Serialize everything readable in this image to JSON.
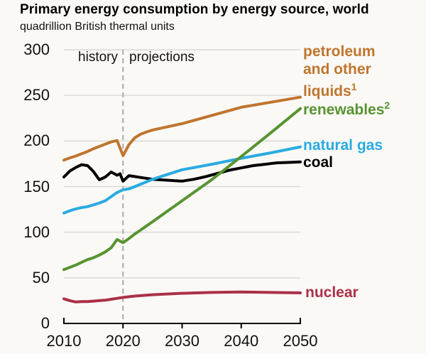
{
  "header": {
    "title": "Primary energy consumption by energy source, world",
    "subtitle": "quadrillion British thermal units"
  },
  "annotations": {
    "history": "history",
    "projections": "projections"
  },
  "series_labels": {
    "petroleum_line1": "petroleum",
    "petroleum_line2": "and other",
    "petroleum_line3": "liquids",
    "petroleum_sup": "1",
    "renewables": "renewables",
    "renewables_sup": "2",
    "natural_gas": "natural gas",
    "coal": "coal",
    "nuclear": "nuclear"
  },
  "colors": {
    "petroleum": "#bf752e",
    "renewables": "#569431",
    "natural_gas": "#29abe2",
    "coal": "#000000",
    "nuclear": "#ab3048",
    "gridline": "#d9d9d9",
    "divider_dash": "#aaaaaa",
    "axis": "#000000"
  },
  "chart_data": {
    "type": "line",
    "title": "Primary energy consumption by energy source, world",
    "ylabel": "quadrillion British thermal units",
    "xlim": [
      2010,
      2050
    ],
    "ylim": [
      0,
      300
    ],
    "x_ticks": [
      2010,
      2020,
      2030,
      2040,
      2050
    ],
    "y_ticks": [
      0,
      50,
      100,
      150,
      200,
      250,
      300
    ],
    "grid": "horizontal",
    "history_end": 2020,
    "legend_position": "right-edge-labels",
    "series": [
      {
        "id": "coal",
        "name": "coal",
        "color": "#000000",
        "points": [
          [
            2010,
            160.5
          ],
          [
            2011,
            167
          ],
          [
            2012,
            171
          ],
          [
            2013,
            174
          ],
          [
            2014,
            173
          ],
          [
            2015,
            166.5
          ],
          [
            2016,
            157.5
          ],
          [
            2017,
            160.5
          ],
          [
            2018,
            166
          ],
          [
            2019,
            162.5
          ],
          [
            2019.5,
            164
          ],
          [
            2020,
            156
          ],
          [
            2021,
            162
          ],
          [
            2022,
            161
          ],
          [
            2023,
            160
          ],
          [
            2025,
            158
          ],
          [
            2030,
            156
          ],
          [
            2032,
            158
          ],
          [
            2034,
            161
          ],
          [
            2036,
            164.5
          ],
          [
            2038,
            168
          ],
          [
            2040,
            170.5
          ],
          [
            2042,
            173
          ],
          [
            2044,
            174.5
          ],
          [
            2046,
            176
          ],
          [
            2048,
            176.5
          ],
          [
            2050,
            177
          ]
        ]
      },
      {
        "id": "natural-gas",
        "name": "natural gas",
        "color": "#29abe2",
        "points": [
          [
            2010,
            121
          ],
          [
            2011,
            123.5
          ],
          [
            2012,
            125.5
          ],
          [
            2013,
            127
          ],
          [
            2014,
            128
          ],
          [
            2015,
            130
          ],
          [
            2016,
            132
          ],
          [
            2017,
            134.5
          ],
          [
            2018,
            139
          ],
          [
            2019,
            143.5
          ],
          [
            2020,
            146.5
          ],
          [
            2021,
            147.5
          ],
          [
            2022,
            150
          ],
          [
            2025,
            158
          ],
          [
            2030,
            168.5
          ],
          [
            2035,
            174.5
          ],
          [
            2040,
            181
          ],
          [
            2045,
            187
          ],
          [
            2050,
            193.5
          ]
        ]
      },
      {
        "id": "petroleum-and-other-liquids",
        "name": "petroleum and other liquids",
        "color": "#bf752e",
        "points": [
          [
            2010,
            179
          ],
          [
            2011,
            181.5
          ],
          [
            2012,
            183.5
          ],
          [
            2013,
            186
          ],
          [
            2014,
            188.5
          ],
          [
            2015,
            191.5
          ],
          [
            2016,
            194
          ],
          [
            2017,
            196.5
          ],
          [
            2018,
            199
          ],
          [
            2019,
            200.5
          ],
          [
            2020,
            184
          ],
          [
            2021,
            196
          ],
          [
            2022,
            203.5
          ],
          [
            2023,
            207.5
          ],
          [
            2024,
            210
          ],
          [
            2025,
            212
          ],
          [
            2030,
            219
          ],
          [
            2035,
            228
          ],
          [
            2040,
            237
          ],
          [
            2045,
            242.5
          ],
          [
            2050,
            248
          ]
        ]
      },
      {
        "id": "nuclear",
        "name": "nuclear",
        "color": "#ab3048",
        "points": [
          [
            2010,
            27
          ],
          [
            2011,
            25
          ],
          [
            2012,
            23.5
          ],
          [
            2013,
            24
          ],
          [
            2014,
            24
          ],
          [
            2015,
            24.5
          ],
          [
            2016,
            25
          ],
          [
            2017,
            25.5
          ],
          [
            2018,
            26.5
          ],
          [
            2019,
            27.5
          ],
          [
            2020,
            28.5
          ],
          [
            2022,
            30
          ],
          [
            2025,
            31.5
          ],
          [
            2030,
            33
          ],
          [
            2035,
            34
          ],
          [
            2040,
            34.5
          ],
          [
            2045,
            34
          ],
          [
            2050,
            33.5
          ]
        ]
      },
      {
        "id": "renewables",
        "name": "renewables",
        "color": "#569431",
        "points": [
          [
            2010,
            59
          ],
          [
            2011,
            61.5
          ],
          [
            2012,
            64
          ],
          [
            2013,
            67
          ],
          [
            2014,
            70
          ],
          [
            2015,
            72
          ],
          [
            2016,
            75
          ],
          [
            2017,
            78.5
          ],
          [
            2018,
            83
          ],
          [
            2019,
            92
          ],
          [
            2020,
            88.5
          ],
          [
            2021,
            93
          ],
          [
            2022,
            98
          ],
          [
            2023,
            102.5
          ],
          [
            2024,
            107
          ],
          [
            2025,
            111.5
          ],
          [
            2030,
            134.5
          ],
          [
            2035,
            157.5
          ],
          [
            2040,
            183
          ],
          [
            2045,
            209
          ],
          [
            2050,
            235.5
          ]
        ]
      }
    ]
  }
}
